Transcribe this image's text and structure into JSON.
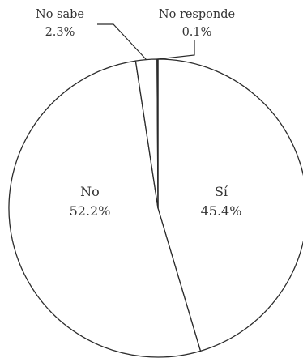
{
  "chart_data": {
    "type": "pie",
    "title": "",
    "slices": [
      {
        "label": "Sí",
        "value": 45.4,
        "display": "45.4%"
      },
      {
        "label": "No",
        "value": 52.2,
        "display": "52.2%"
      },
      {
        "label": "No sabe",
        "value": 2.3,
        "display": "2.3%"
      },
      {
        "label": "No responde",
        "value": 0.1,
        "display": "0.1%"
      }
    ],
    "colors": {
      "fill": "#ffffff",
      "stroke": "#2b2b2b",
      "text": "#333333"
    },
    "start": "12 o'clock",
    "direction": "clockwise"
  }
}
